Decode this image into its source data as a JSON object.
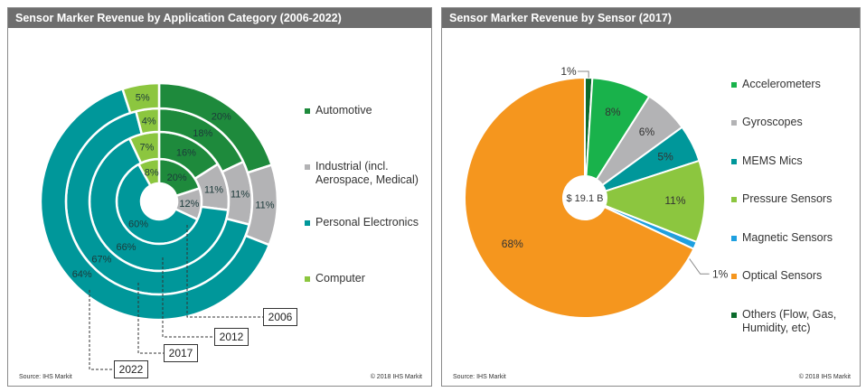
{
  "left": {
    "title": "Sensor Marker Revenue by Application Category (2006-2022)",
    "source": "Source: IHS Markit",
    "copyright": "© 2018 IHS Markit"
  },
  "right": {
    "title": "Sensor Marker Revenue by Sensor (2017)",
    "source": "Source: IHS Markit",
    "copyright": "© 2018 IHS Markit"
  },
  "chart_data": [
    {
      "type": "pie",
      "variant": "nested-donut",
      "title": "Sensor Marker Revenue by Application Category (2006-2022)",
      "categories": [
        "Automotive",
        "Industrial (incl. Aerospace, Medical)",
        "Personal Electronics",
        "Computer"
      ],
      "colors": [
        "#1e8a3c",
        "#b3b3b5",
        "#00979a",
        "#8cc63f"
      ],
      "legend": "right",
      "rings": [
        {
          "name": "2006",
          "values": [
            20,
            12,
            60,
            8
          ]
        },
        {
          "name": "2012",
          "values": [
            16,
            11,
            66,
            7
          ]
        },
        {
          "name": "2017",
          "values": [
            18,
            11,
            67,
            4
          ]
        },
        {
          "name": "2022",
          "values": [
            20,
            11,
            64,
            5
          ]
        }
      ],
      "unit": "%"
    },
    {
      "type": "pie",
      "variant": "donut",
      "title": "Sensor Marker Revenue by Sensor (2017)",
      "center_label": "$ 19.1 B",
      "categories": [
        "Others (Flow, Gas, Humidity, etc)",
        "Accelerometers",
        "Gyroscopes",
        "MEMS Mics",
        "Pressure Sensors",
        "Magnetic Sensors",
        "Optical Sensors"
      ],
      "values": [
        1,
        8,
        6,
        5,
        11,
        1,
        68
      ],
      "colors": [
        "#0b6b2c",
        "#19b24b",
        "#b3b3b5",
        "#00979a",
        "#8cc63f",
        "#1ea0e0",
        "#f5961e"
      ],
      "legend_order": [
        "Accelerometers",
        "Gyroscopes",
        "MEMS Mics",
        "Pressure Sensors",
        "Magnetic Sensors",
        "Optical Sensors",
        "Others (Flow, Gas, Humidity, etc)"
      ],
      "legend": "right",
      "unit": "%"
    }
  ]
}
